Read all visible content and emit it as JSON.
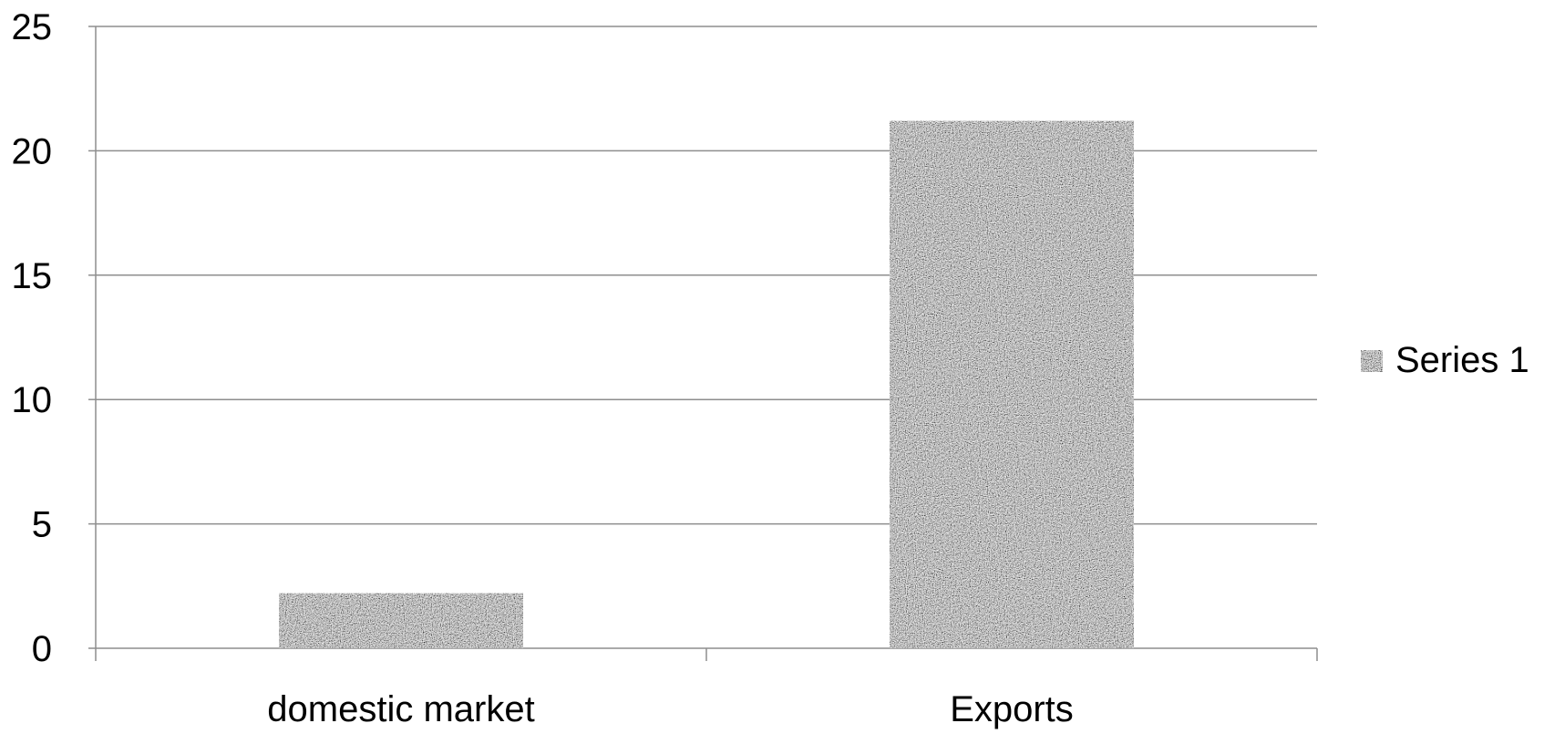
{
  "chart_data": {
    "type": "bar",
    "title": "",
    "xlabel": "",
    "ylabel": "",
    "categories": [
      "domestic market",
      "Exports"
    ],
    "series": [
      {
        "name": "Series 1",
        "values": [
          2.2,
          21.2
        ]
      }
    ],
    "ylim": [
      0,
      25
    ],
    "yticks": [
      "0",
      "5",
      "10",
      "15",
      "20",
      "25"
    ],
    "grid": true,
    "legend_position": "right",
    "bar_color": "#8c8c8c",
    "gridline_color": "#8e8e8e"
  }
}
